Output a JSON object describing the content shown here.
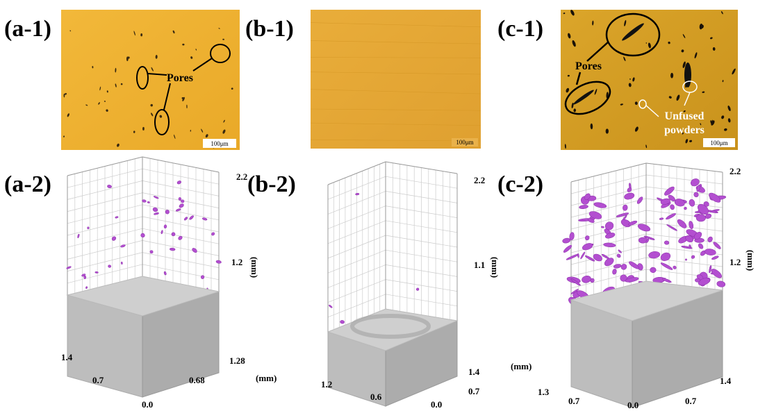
{
  "panels": [
    {
      "label": "(a-1)",
      "annotations": [
        "Pores"
      ],
      "scale_bar": "100μm"
    },
    {
      "label": "(b-1)",
      "scale_bar": "100μm"
    },
    {
      "label": "(c-1)",
      "annotations": [
        "Pores",
        "Unfused",
        "powders"
      ],
      "scale_bar": "100μm"
    },
    {
      "label": "(a-2)",
      "axis_labels": [
        "2.2",
        "1.2",
        "(mm)",
        "1.4",
        "0.7",
        "0.0",
        "1.28",
        "0.68",
        "(mm)"
      ]
    },
    {
      "label": "(b-2)",
      "axis_labels": [
        "2.2",
        "1.1",
        "(mm)",
        "1.4",
        "0.7",
        "0.0",
        "0.6",
        "1.2"
      ]
    },
    {
      "label": "(c-2)",
      "axis_labels": [
        "2.2",
        "1.2",
        "(mm)",
        "(mm)",
        "1.3",
        "0.7",
        "0.0",
        "0.7",
        "1.4"
      ]
    }
  ]
}
